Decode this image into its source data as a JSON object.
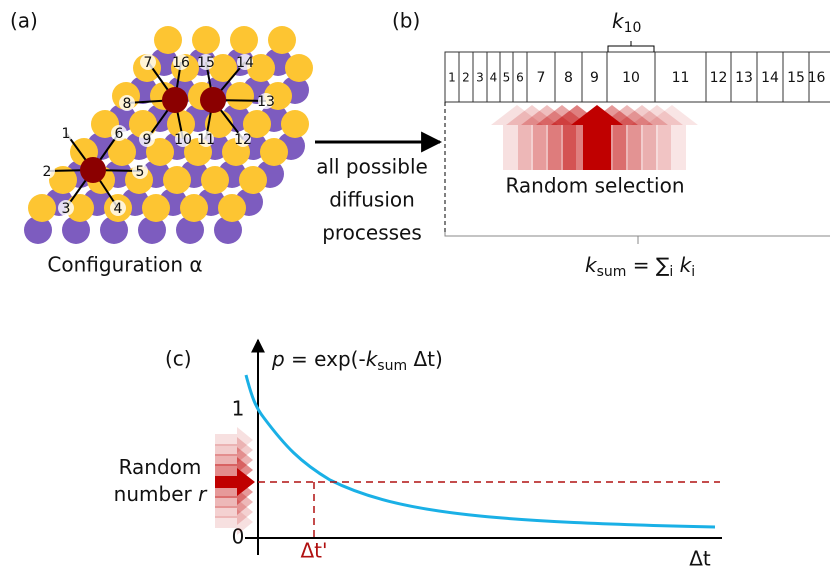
{
  "panel_a": {
    "label": "(a)",
    "caption": "Configuration α",
    "neighbors": [
      "1",
      "2",
      "3",
      "4",
      "5",
      "6",
      "7",
      "8",
      "9",
      "10",
      "11",
      "12",
      "13",
      "14",
      "15",
      "16"
    ]
  },
  "arrow_text": [
    "all possible",
    "diffusion",
    "processes"
  ],
  "panel_b": {
    "label": "(b)",
    "k10": [
      {
        "text": "k",
        "style": "italic"
      },
      {
        "text": "10",
        "style": "sub"
      }
    ],
    "boxes": [
      "1",
      "2",
      "3",
      "4",
      "5",
      "6",
      "7",
      "8",
      "9",
      "10",
      "11",
      "12",
      "13",
      "14",
      "15",
      "16"
    ],
    "selection": "Random selection",
    "sum": [
      {
        "text": "k",
        "style": "italic"
      },
      {
        "text": "sum",
        "style": "sub"
      },
      {
        "text": " = ∑"
      },
      {
        "text": "i",
        "style": "sub"
      },
      {
        "text": " k",
        "style": "italic"
      },
      {
        "text": "i",
        "style": "sub"
      }
    ]
  },
  "panel_c": {
    "label": "(c)",
    "formula": [
      {
        "text": "p",
        "style": "italic"
      },
      {
        "text": " = exp(-"
      },
      {
        "text": "k",
        "style": "italic"
      },
      {
        "text": "sum",
        "style": "sub"
      },
      {
        "text": " Δt)"
      }
    ],
    "tick_one": "1",
    "tick_zero": "0",
    "random_line1": [
      {
        "text": "Random"
      }
    ],
    "random_line2": [
      {
        "text": "number "
      },
      {
        "text": "r",
        "style": "italic"
      }
    ],
    "x_mark": "Δt'",
    "x_axis": "Δt"
  }
}
